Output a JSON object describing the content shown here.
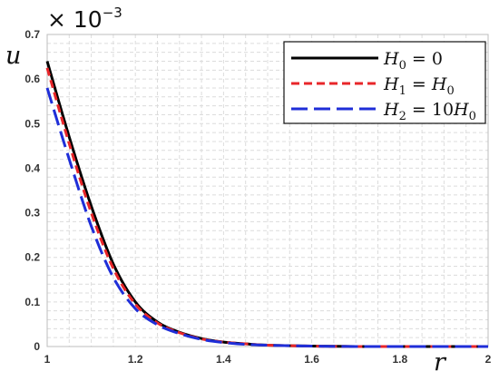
{
  "chart_data": {
    "type": "line",
    "xlabel": "r",
    "ylabel": "u",
    "y_scale_note": {
      "base": "× 10",
      "exponent": "−3"
    },
    "xlim": [
      1,
      2
    ],
    "ylim": [
      0,
      0.7
    ],
    "x_ticks": [
      1,
      1.2,
      1.4,
      1.6,
      1.8,
      2
    ],
    "x_tick_labels": [
      "1",
      "1.2",
      "1.4",
      "1.6",
      "1.8",
      "2"
    ],
    "y_ticks": [
      0,
      0.1,
      0.2,
      0.3,
      0.4,
      0.5,
      0.6,
      0.7
    ],
    "y_tick_labels": [
      "0",
      "0.1",
      "0.2",
      "0.3",
      "0.4",
      "0.5",
      "0.6",
      "0.7"
    ],
    "grid": "dashed",
    "legend_position": "top-right",
    "series": [
      {
        "name": "H0 = 0",
        "legend": {
          "var": "H",
          "sub": "0",
          "rest": " = 0",
          "rest_var": "",
          "rest_sub": ""
        },
        "color": "#000000",
        "style": "solid",
        "x": [
          1.0,
          1.05,
          1.1,
          1.15,
          1.2,
          1.25,
          1.3,
          1.35,
          1.4,
          1.45,
          1.5,
          1.6,
          1.7,
          1.8,
          1.9,
          2.0
        ],
        "y": [
          0.64,
          0.47,
          0.315,
          0.185,
          0.1,
          0.055,
          0.032,
          0.018,
          0.01,
          0.006,
          0.003,
          0.001,
          0.0,
          0.0,
          0.0,
          0.0
        ]
      },
      {
        "name": "H1 = H0",
        "legend": {
          "var": "H",
          "sub": "1",
          "rest": " = ",
          "rest_var": "H",
          "rest_sub": "0"
        },
        "color": "#e8262a",
        "style": "dashed",
        "x": [
          1.0,
          1.05,
          1.1,
          1.15,
          1.2,
          1.25,
          1.3,
          1.35,
          1.4,
          1.45,
          1.5,
          1.6,
          1.7,
          1.8,
          1.9,
          2.0
        ],
        "y": [
          0.625,
          0.455,
          0.3,
          0.175,
          0.095,
          0.053,
          0.031,
          0.017,
          0.01,
          0.006,
          0.003,
          0.001,
          0.0,
          0.0,
          0.0,
          0.0
        ]
      },
      {
        "name": "H2 = 10H0",
        "legend": {
          "var": "H",
          "sub": "2",
          "rest": " = 10",
          "rest_var": "H",
          "rest_sub": "0"
        },
        "color": "#1f2ed8",
        "style": "longdash",
        "x": [
          1.0,
          1.05,
          1.1,
          1.15,
          1.2,
          1.25,
          1.3,
          1.35,
          1.4,
          1.45,
          1.5,
          1.6,
          1.7,
          1.8,
          1.9,
          2.0
        ],
        "y": [
          0.58,
          0.42,
          0.27,
          0.155,
          0.085,
          0.049,
          0.029,
          0.016,
          0.009,
          0.005,
          0.003,
          0.001,
          0.0,
          0.0,
          0.0,
          0.0
        ]
      }
    ]
  }
}
